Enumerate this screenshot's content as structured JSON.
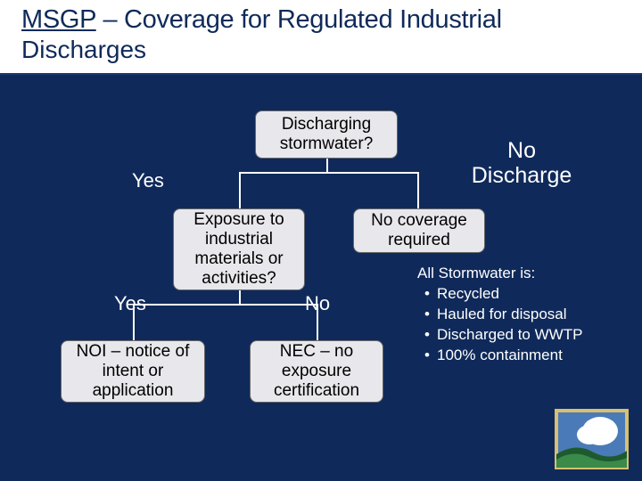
{
  "title": {
    "line1_underlined": "MSGP",
    "line1_rest": " – Coverage for Regulated Industrial",
    "line2": "Discharges"
  },
  "colors": {
    "background": "#0f2a5a",
    "node_fill": "#e8e8ec",
    "node_border": "#666666",
    "text_dark": "#0f2a5a",
    "text_light": "#ffffff",
    "line": "#ffffff",
    "logo_border": "#d8c070",
    "logo_sky": "#4a7bb8",
    "logo_cloud": "#ffffff",
    "logo_hill_dark": "#1e5a2e",
    "logo_hill_light": "#3a8a4a"
  },
  "nodes": {
    "q1": "Discharging\nstormwater?",
    "q2": "Exposure to\nindustrial\nmaterials or\nactivities?",
    "no_cov": "No coverage\nrequired",
    "noi": "NOI – notice of\nintent or\napplication",
    "nec": "NEC – no\nexposure\ncertification"
  },
  "branches": {
    "yes1": "Yes",
    "no_discharge_l1": "No",
    "no_discharge_l2": "Discharge",
    "yes2": "Yes",
    "no2": "No"
  },
  "side": {
    "heading": "All Stormwater is:",
    "items": [
      "Recycled",
      "Hauled for disposal",
      "Discharged to WWTP",
      "100% containment"
    ]
  },
  "layout": {
    "title_fontsize": 29,
    "node_fontsize": 19,
    "branch_fontsize": 22,
    "side_fontsize": 17,
    "line_width": 1
  }
}
